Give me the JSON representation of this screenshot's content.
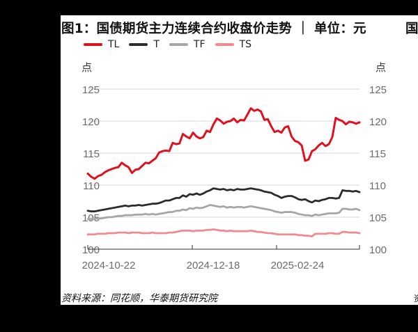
{
  "title": "图1：国债期货主力连续合约收盘价走势 ｜ 单位：元",
  "title_next_cut": "国",
  "source": "资料来源：同花顺，华泰期货研究院",
  "source_next_cut": "资",
  "unit_left": "点",
  "unit_right": "点",
  "colors": {
    "TL": "#e0101e",
    "T": "#2b2b2b",
    "TF": "#a6a6a6",
    "TS": "#f08a90",
    "grid": "#d9dde8",
    "axis": "#333333",
    "tick_text": "#6b6b6b"
  },
  "legend": [
    {
      "label": "TL",
      "color": "#e0101e"
    },
    {
      "label": "T",
      "color": "#2b2b2b"
    },
    {
      "label": "TF",
      "color": "#a6a6a6"
    },
    {
      "label": "TS",
      "color": "#f08a90"
    }
  ],
  "chart_data": {
    "type": "line",
    "title": "图1：国债期货主力连续合约收盘价走势 ｜ 单位：元",
    "xlabel": "",
    "ylabel": "点",
    "ylabel_right": "点",
    "ylim": [
      100,
      125
    ],
    "yticks": [
      100,
      105,
      110,
      115,
      120,
      125
    ],
    "xticks": [
      "2024-10-22",
      "2024-12-18",
      "2025-02-24",
      ""
    ],
    "grid": true,
    "legend_position": "top-left",
    "x_start": "2024-10-22",
    "series": [
      {
        "name": "TL",
        "values": [
          111.8,
          111.3,
          111.0,
          111.4,
          111.6,
          112.0,
          112.3,
          112.5,
          112.7,
          112.8,
          113.5,
          113.1,
          112.8,
          111.9,
          112.4,
          112.5,
          113.0,
          113.5,
          113.4,
          113.8,
          114.2,
          115.1,
          115.3,
          115.4,
          115.3,
          116.6,
          116.4,
          116.5,
          118.0,
          117.6,
          117.3,
          118.2,
          117.6,
          117.3,
          117.5,
          118.5,
          118.3,
          119.5,
          120.4,
          120.1,
          119.6,
          119.9,
          120.0,
          120.4,
          119.8,
          120.2,
          120.1,
          121.0,
          122.0,
          121.6,
          121.8,
          121.5,
          120.2,
          120.3,
          119.2,
          118.3,
          118.5,
          118.2,
          119.0,
          119.2,
          117.6,
          116.9,
          116.7,
          116.2,
          113.8,
          114.0,
          115.3,
          115.6,
          116.2,
          116.6,
          116.1,
          116.4,
          117.5,
          120.5,
          120.2,
          120.0,
          119.5,
          119.9,
          119.8,
          119.6,
          119.8
        ]
      },
      {
        "name": "T",
        "values": [
          106.0,
          105.9,
          105.9,
          106.0,
          106.1,
          106.2,
          106.3,
          106.4,
          106.5,
          106.6,
          106.7,
          106.8,
          106.7,
          106.8,
          106.8,
          106.9,
          106.8,
          106.9,
          107.0,
          107.1,
          107.1,
          107.2,
          107.4,
          107.6,
          107.6,
          107.8,
          108.0,
          108.0,
          108.4,
          108.2,
          108.6,
          108.5,
          108.7,
          108.5,
          108.7,
          109.0,
          109.2,
          109.5,
          109.4,
          109.3,
          109.4,
          109.2,
          109.3,
          109.2,
          109.4,
          109.3,
          109.3,
          109.4,
          109.5,
          109.4,
          109.3,
          109.2,
          109.0,
          108.9,
          108.8,
          108.5,
          108.3,
          108.0,
          108.2,
          108.3,
          108.3,
          108.1,
          107.8,
          107.7,
          107.8,
          107.5,
          107.3,
          107.6,
          107.5,
          107.7,
          107.8,
          108.0,
          108.0,
          107.9,
          108.0,
          109.2,
          109.1,
          109.1,
          109.0,
          109.1,
          108.9
        ]
      },
      {
        "name": "TF",
        "values": [
          104.7,
          104.7,
          104.7,
          104.8,
          104.8,
          104.9,
          105.0,
          105.0,
          105.1,
          105.2,
          105.2,
          105.3,
          105.3,
          105.3,
          105.4,
          105.4,
          105.4,
          105.5,
          105.4,
          105.5,
          105.4,
          105.5,
          105.6,
          105.7,
          105.8,
          105.8,
          106.0,
          106.0,
          106.2,
          106.1,
          106.4,
          106.3,
          106.5,
          106.4,
          106.5,
          106.7,
          106.9,
          106.8,
          106.7,
          106.6,
          106.7,
          106.5,
          106.6,
          106.5,
          106.6,
          106.6,
          106.5,
          106.6,
          106.7,
          106.6,
          106.5,
          106.4,
          106.3,
          106.2,
          106.1,
          105.9,
          105.8,
          105.7,
          105.8,
          105.8,
          105.8,
          105.7,
          105.5,
          105.4,
          105.3,
          105.3,
          105.2,
          105.4,
          105.3,
          105.4,
          105.5,
          105.6,
          105.6,
          105.6,
          105.7,
          106.3,
          106.3,
          106.2,
          106.2,
          106.3,
          106.1
        ]
      },
      {
        "name": "TS",
        "values": [
          102.3,
          102.3,
          102.3,
          102.4,
          102.4,
          102.4,
          102.5,
          102.5,
          102.5,
          102.6,
          102.6,
          102.6,
          102.5,
          102.6,
          102.6,
          102.6,
          102.5,
          102.5,
          102.5,
          102.6,
          102.5,
          102.5,
          102.5,
          102.5,
          102.6,
          102.6,
          102.7,
          102.8,
          102.9,
          102.9,
          102.9,
          102.8,
          102.9,
          102.9,
          102.9,
          103.0,
          103.0,
          103.1,
          103.0,
          102.9,
          102.9,
          102.8,
          102.9,
          102.8,
          102.8,
          102.8,
          102.8,
          102.8,
          102.9,
          102.8,
          102.7,
          102.7,
          102.6,
          102.5,
          102.5,
          102.4,
          102.3,
          102.3,
          102.3,
          102.3,
          102.3,
          102.3,
          102.2,
          102.2,
          102.1,
          102.1,
          102.0,
          102.4,
          102.4,
          102.4,
          102.4,
          102.5,
          102.5,
          102.4,
          102.4,
          102.7,
          102.7,
          102.6,
          102.6,
          102.6,
          102.5
        ]
      }
    ]
  }
}
